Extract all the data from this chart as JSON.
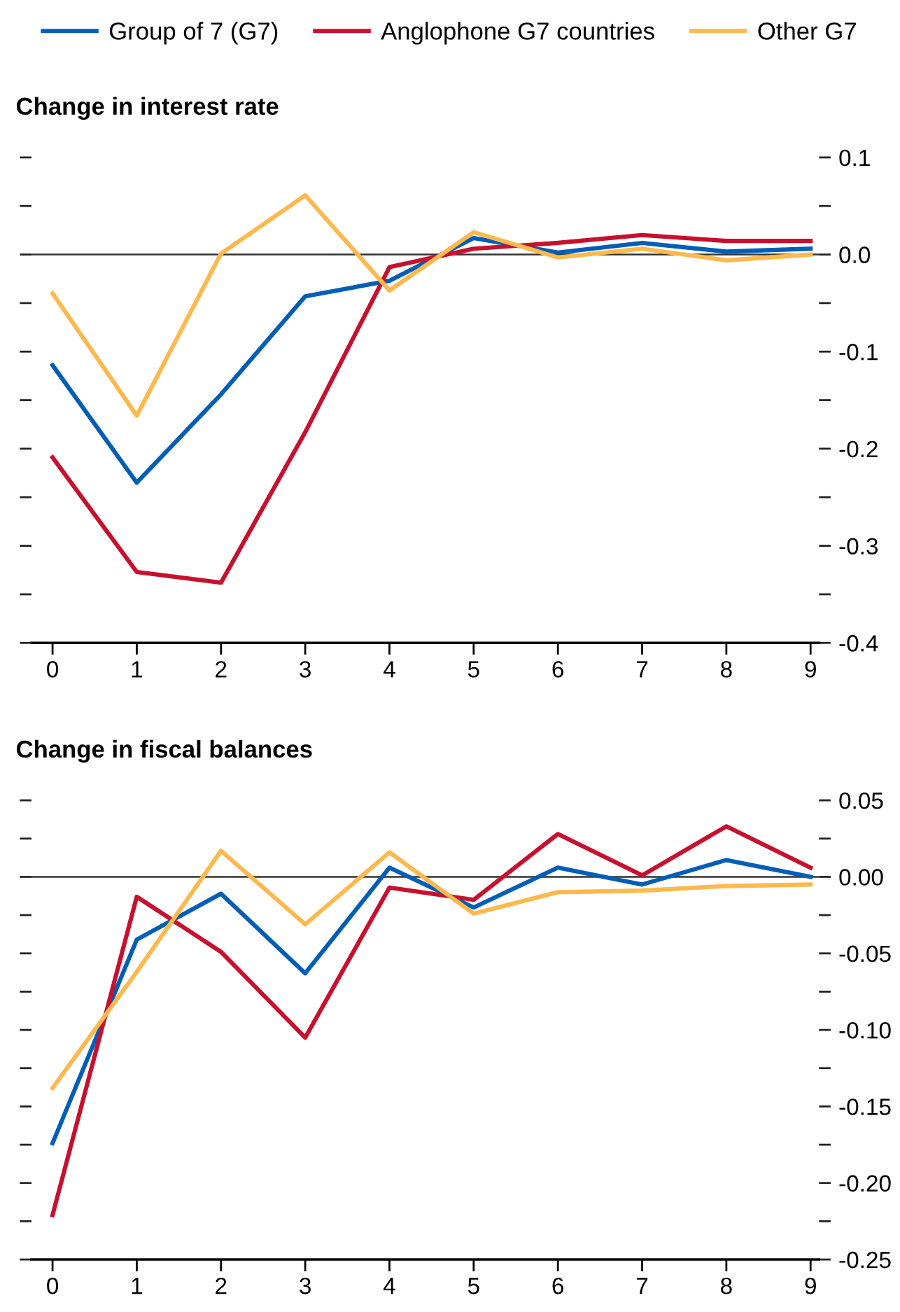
{
  "chart_data": [
    {
      "type": "line",
      "title": "Change in interest rate",
      "x": [
        0,
        1,
        2,
        3,
        4,
        5,
        6,
        7,
        8,
        9
      ],
      "xlim": [
        -0.25,
        9.1
      ],
      "xticks": [
        0,
        1,
        2,
        3,
        4,
        5,
        6,
        7,
        8,
        9
      ],
      "ylim": [
        -0.4,
        0.1
      ],
      "yticks": [
        {
          "value": -0.4,
          "label": "-0.4"
        },
        {
          "value": -0.35,
          "label": null
        },
        {
          "value": -0.3,
          "label": "-0.3"
        },
        {
          "value": -0.25,
          "label": null
        },
        {
          "value": -0.2,
          "label": "-0.2"
        },
        {
          "value": -0.15,
          "label": null
        },
        {
          "value": -0.1,
          "label": "-0.1"
        },
        {
          "value": -0.05,
          "label": null
        },
        {
          "value": 0,
          "label": "0.0"
        },
        {
          "value": 0.05,
          "label": null
        },
        {
          "value": 0.1,
          "label": "0.1"
        }
      ],
      "ref_lines": [
        {
          "axis": "y",
          "value": 0,
          "label": null,
          "color": "#333333"
        }
      ],
      "legend": "top",
      "grid": false,
      "series": [
        {
          "name": "Group of 7 (G7)",
          "color": "#005eb8",
          "values": [
            -0.114,
            -0.235,
            -0.144,
            -0.043,
            -0.027,
            0.017,
            0.002,
            0.012,
            0.003,
            0.006
          ]
        },
        {
          "name": "Anglophone G7 countries",
          "color": "#c8102e",
          "values": [
            -0.209,
            -0.327,
            -0.338,
            -0.183,
            -0.013,
            0.006,
            0.012,
            0.02,
            0.014,
            0.014
          ]
        },
        {
          "name": "Other G7",
          "color": "#fdb94e",
          "values": [
            -0.04,
            -0.166,
            0.001,
            0.061,
            -0.037,
            0.023,
            -0.003,
            0.006,
            -0.006,
            0.0
          ]
        }
      ]
    },
    {
      "type": "line",
      "title": "Change in fiscal balances",
      "x": [
        0,
        1,
        2,
        3,
        4,
        5,
        6,
        7,
        8,
        9
      ],
      "xlim": [
        -0.25,
        9.1
      ],
      "xticks": [
        0,
        1,
        2,
        3,
        4,
        5,
        6,
        7,
        8,
        9
      ],
      "ylim": [
        -0.25,
        0.05
      ],
      "yticks": [
        {
          "value": -0.25,
          "label": "-0.25"
        },
        {
          "value": -0.225,
          "label": null
        },
        {
          "value": -0.2,
          "label": "-0.20"
        },
        {
          "value": -0.175,
          "label": null
        },
        {
          "value": -0.15,
          "label": "-0.15"
        },
        {
          "value": -0.125,
          "label": null
        },
        {
          "value": -0.1,
          "label": "-0.10"
        },
        {
          "value": -0.075,
          "label": null
        },
        {
          "value": -0.05,
          "label": "-0.05"
        },
        {
          "value": -0.025,
          "label": null
        },
        {
          "value": 0,
          "label": "0.00"
        },
        {
          "value": 0.025,
          "label": null
        },
        {
          "value": 0.05,
          "label": "0.05"
        }
      ],
      "ref_lines": [
        {
          "axis": "y",
          "value": 0,
          "label": null,
          "color": "#333333"
        }
      ],
      "grid": false,
      "series": [
        {
          "color": "#005eb8",
          "values": [
            -0.174,
            -0.041,
            -0.011,
            -0.063,
            0.006,
            -0.02,
            0.006,
            -0.005,
            0.011,
            0.0
          ]
        },
        {
          "color": "#c8102e",
          "values": [
            -0.221,
            -0.013,
            -0.049,
            -0.105,
            -0.007,
            -0.015,
            0.028,
            0.001,
            0.033,
            0.006
          ]
        },
        {
          "color": "#fdb94e",
          "values": [
            -0.138,
            -0.062,
            0.017,
            -0.031,
            0.016,
            -0.024,
            -0.01,
            -0.009,
            -0.006,
            -0.005
          ]
        }
      ]
    }
  ]
}
